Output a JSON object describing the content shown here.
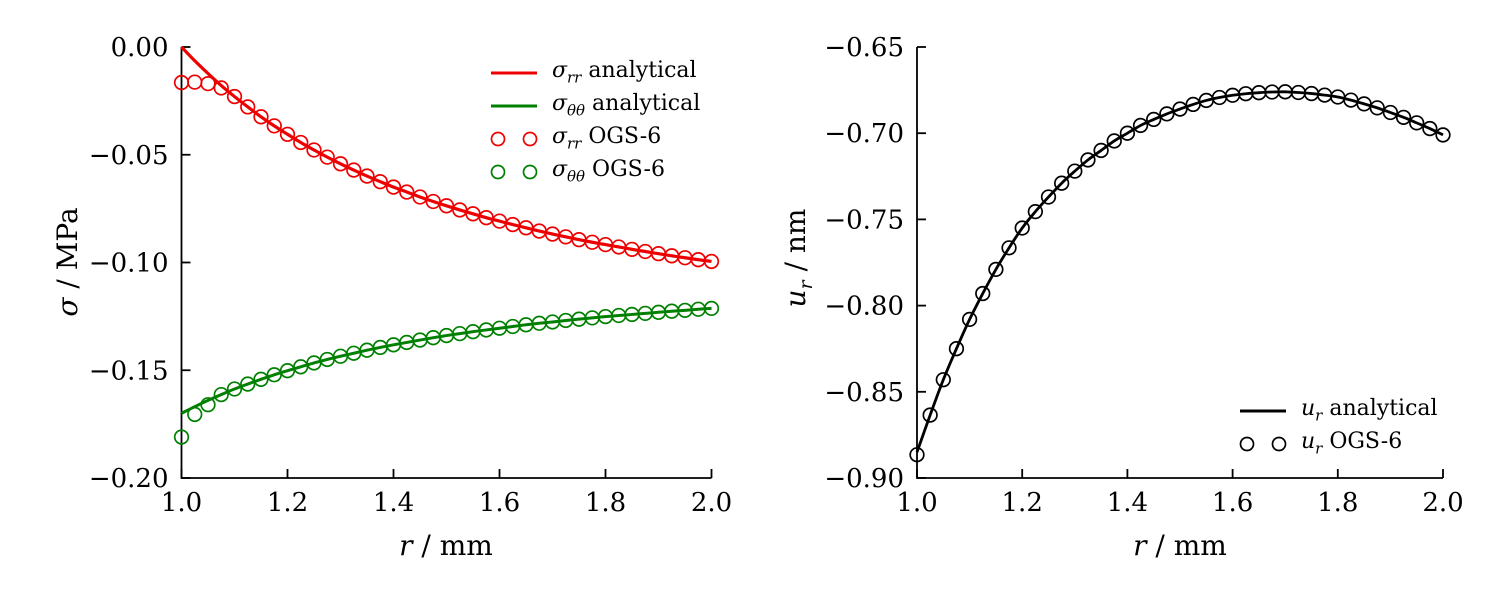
{
  "figure": {
    "background": "#ffffff"
  },
  "colors": {
    "sigma_rr": "#ee0000",
    "sigma_tt": "#008000",
    "u_r": "#000000",
    "axis": "#000000"
  },
  "chart_data": [
    {
      "id": "stress",
      "type": "line+scatter",
      "title": "",
      "xlabel": {
        "sym": "r",
        "sub": "",
        "rest": " / mm"
      },
      "ylabel": {
        "sym": "σ",
        "sub": "",
        "rest": " / MPa"
      },
      "xlim": [
        1.0,
        2.0
      ],
      "ylim": [
        -0.2,
        0.0
      ],
      "grid": false,
      "legend_position": "upper right",
      "xticks": {
        "values": [
          1.0,
          1.2,
          1.4,
          1.6,
          1.8,
          2.0
        ],
        "labels": [
          "1.0",
          "1.2",
          "1.4",
          "1.6",
          "1.8",
          "2.0"
        ]
      },
      "yticks": {
        "values": [
          0.0,
          -0.05,
          -0.1,
          -0.15,
          -0.2
        ],
        "labels": [
          "0.00",
          "−0.05",
          "−0.10",
          "−0.15",
          "−0.20"
        ]
      },
      "x_grid": [
        1.0,
        1.025,
        1.05,
        1.075,
        1.1,
        1.125,
        1.15,
        1.175,
        1.2,
        1.225,
        1.25,
        1.275,
        1.3,
        1.325,
        1.35,
        1.375,
        1.4,
        1.425,
        1.45,
        1.475,
        1.5,
        1.525,
        1.55,
        1.575,
        1.6,
        1.625,
        1.65,
        1.675,
        1.7,
        1.725,
        1.75,
        1.775,
        1.8,
        1.825,
        1.85,
        1.875,
        1.9,
        1.925,
        1.95,
        1.975,
        2.0
      ],
      "series": [
        {
          "name": "sigma_rr analytical",
          "kind": "line",
          "color": "#ee0000",
          "lw": 3.2,
          "y": [
            0.0,
            -0.0064,
            -0.0123,
            -0.0179,
            -0.023,
            -0.0278,
            -0.0324,
            -0.0366,
            -0.0405,
            -0.0443,
            -0.0478,
            -0.0511,
            -0.0542,
            -0.0571,
            -0.0599,
            -0.0625,
            -0.065,
            -0.0673,
            -0.0696,
            -0.0717,
            -0.0737,
            -0.0756,
            -0.0774,
            -0.0792,
            -0.0808,
            -0.0824,
            -0.0839,
            -0.0854,
            -0.0868,
            -0.0881,
            -0.0894,
            -0.0906,
            -0.0917,
            -0.0928,
            -0.0939,
            -0.0949,
            -0.0959,
            -0.0969,
            -0.0978,
            -0.0987,
            -0.0995
          ]
        },
        {
          "name": "sigma_thetatheta analytical",
          "kind": "line",
          "color": "#008000",
          "lw": 3.0,
          "y": [
            -0.17,
            -0.1669,
            -0.164,
            -0.1613,
            -0.1587,
            -0.1564,
            -0.1542,
            -0.1521,
            -0.1502,
            -0.1484,
            -0.1466,
            -0.145,
            -0.1435,
            -0.1421,
            -0.1407,
            -0.1394,
            -0.1382,
            -0.1371,
            -0.136,
            -0.1349,
            -0.1339,
            -0.133,
            -0.1321,
            -0.1313,
            -0.1305,
            -0.1297,
            -0.1289,
            -0.1282,
            -0.1276,
            -0.1269,
            -0.1263,
            -0.1257,
            -0.1251,
            -0.1246,
            -0.1241,
            -0.1236,
            -0.1231,
            -0.1226,
            -0.1222,
            -0.1217,
            -0.1213
          ]
        },
        {
          "name": "sigma_rr OGS-6",
          "kind": "scatter",
          "color": "#ee0000",
          "y": [
            -0.0165,
            -0.0163,
            -0.017,
            -0.019,
            -0.023,
            -0.0278,
            -0.0324,
            -0.0366,
            -0.0405,
            -0.0443,
            -0.0478,
            -0.0511,
            -0.0542,
            -0.0571,
            -0.0599,
            -0.0625,
            -0.065,
            -0.0673,
            -0.0696,
            -0.0717,
            -0.0737,
            -0.0756,
            -0.0774,
            -0.0792,
            -0.0808,
            -0.0824,
            -0.0839,
            -0.0854,
            -0.0868,
            -0.0881,
            -0.0894,
            -0.0906,
            -0.0917,
            -0.0928,
            -0.0939,
            -0.0949,
            -0.0959,
            -0.0969,
            -0.0978,
            -0.0987,
            -0.0995
          ]
        },
        {
          "name": "sigma_thetatheta OGS-6",
          "kind": "scatter",
          "color": "#008000",
          "y": [
            -0.181,
            -0.1705,
            -0.166,
            -0.1613,
            -0.1587,
            -0.1564,
            -0.1542,
            -0.1521,
            -0.1502,
            -0.1484,
            -0.1466,
            -0.145,
            -0.1435,
            -0.1421,
            -0.1407,
            -0.1394,
            -0.1382,
            -0.1371,
            -0.136,
            -0.1349,
            -0.1339,
            -0.133,
            -0.1321,
            -0.1313,
            -0.1305,
            -0.1297,
            -0.1289,
            -0.1282,
            -0.1276,
            -0.1269,
            -0.1263,
            -0.1257,
            -0.1251,
            -0.1246,
            -0.1241,
            -0.1236,
            -0.1231,
            -0.1226,
            -0.1222,
            -0.1217,
            -0.1213
          ]
        }
      ],
      "legend": [
        {
          "marker": "line",
          "color": "#ee0000",
          "sym": "σ",
          "sub": "rr",
          "rest": " analytical"
        },
        {
          "marker": "line",
          "color": "#008000",
          "sym": "σ",
          "sub": "θθ",
          "rest": " analytical"
        },
        {
          "marker": "circles",
          "color": "#ee0000",
          "sym": "σ",
          "sub": "rr",
          "rest": " OGS-6"
        },
        {
          "marker": "circles",
          "color": "#008000",
          "sym": "σ",
          "sub": "θθ",
          "rest": " OGS-6"
        }
      ]
    },
    {
      "id": "displacement",
      "type": "line+scatter",
      "title": "",
      "xlabel": {
        "sym": "r",
        "sub": "",
        "rest": " / mm"
      },
      "ylabel": {
        "sym": "u",
        "sub": "r",
        "rest": " / nm"
      },
      "xlim": [
        1.0,
        2.0
      ],
      "ylim": [
        -0.9,
        -0.65
      ],
      "grid": false,
      "legend_position": "lower right",
      "xticks": {
        "values": [
          1.0,
          1.2,
          1.4,
          1.6,
          1.8,
          2.0
        ],
        "labels": [
          "1.0",
          "1.2",
          "1.4",
          "1.6",
          "1.8",
          "2.0"
        ]
      },
      "yticks": {
        "values": [
          -0.65,
          -0.7,
          -0.75,
          -0.8,
          -0.85,
          -0.9
        ],
        "labels": [
          "−0.65",
          "−0.70",
          "−0.75",
          "−0.80",
          "−0.85",
          "−0.90"
        ]
      },
      "x_grid": [
        1.0,
        1.025,
        1.05,
        1.075,
        1.1,
        1.125,
        1.15,
        1.175,
        1.2,
        1.225,
        1.25,
        1.275,
        1.3,
        1.325,
        1.35,
        1.375,
        1.4,
        1.425,
        1.45,
        1.475,
        1.5,
        1.525,
        1.55,
        1.575,
        1.6,
        1.625,
        1.65,
        1.675,
        1.7,
        1.725,
        1.75,
        1.775,
        1.8,
        1.825,
        1.85,
        1.875,
        1.9,
        1.925,
        1.95,
        1.975,
        2.0
      ],
      "series": [
        {
          "name": "u_r analytical",
          "kind": "line",
          "color": "#000000",
          "lw": 2.8,
          "y": [
            -0.885,
            -0.8635,
            -0.843,
            -0.825,
            -0.808,
            -0.793,
            -0.779,
            -0.7665,
            -0.755,
            -0.7455,
            -0.737,
            -0.729,
            -0.722,
            -0.7155,
            -0.71,
            -0.7045,
            -0.7,
            -0.6955,
            -0.692,
            -0.6888,
            -0.686,
            -0.6833,
            -0.681,
            -0.6793,
            -0.678,
            -0.6771,
            -0.6765,
            -0.6761,
            -0.676,
            -0.6764,
            -0.677,
            -0.6779,
            -0.679,
            -0.6808,
            -0.683,
            -0.6853,
            -0.688,
            -0.6908,
            -0.694,
            -0.6973,
            -0.701
          ]
        },
        {
          "name": "u_r OGS-6",
          "kind": "scatter",
          "color": "#000000",
          "y": [
            -0.8865,
            -0.8635,
            -0.843,
            -0.825,
            -0.808,
            -0.793,
            -0.779,
            -0.7665,
            -0.755,
            -0.7455,
            -0.737,
            -0.729,
            -0.722,
            -0.7155,
            -0.71,
            -0.7045,
            -0.7,
            -0.6955,
            -0.692,
            -0.6888,
            -0.686,
            -0.6833,
            -0.681,
            -0.6793,
            -0.678,
            -0.6771,
            -0.6765,
            -0.6761,
            -0.676,
            -0.6764,
            -0.677,
            -0.6779,
            -0.679,
            -0.6808,
            -0.683,
            -0.6853,
            -0.688,
            -0.6908,
            -0.694,
            -0.6973,
            -0.701
          ]
        }
      ],
      "legend": [
        {
          "marker": "line",
          "color": "#000000",
          "sym": "u",
          "sub": "r",
          "rest": " analytical"
        },
        {
          "marker": "circles",
          "color": "#000000",
          "sym": "u",
          "sub": "r",
          "rest": " OGS-6"
        }
      ]
    }
  ]
}
